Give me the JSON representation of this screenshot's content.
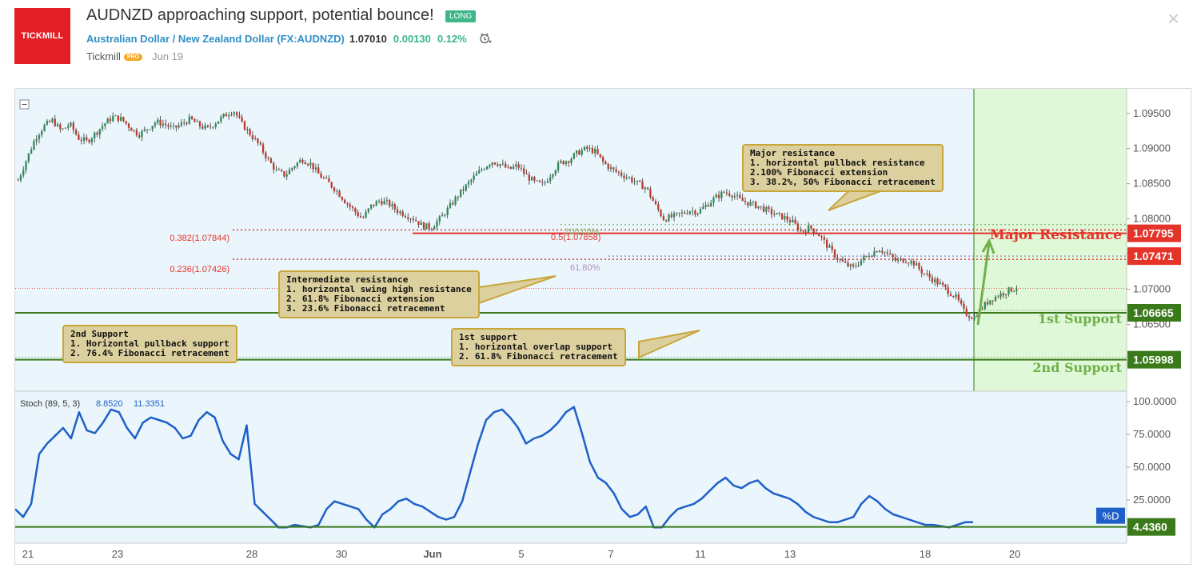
{
  "header": {
    "logo_text": "TICKMILL",
    "title": "AUDNZD approaching support, potential bounce!",
    "badge": "LONG",
    "symbol_line": "Australian Dollar / New Zealand Dollar (FX:AUDNZD)",
    "price": "1.07010",
    "change": "0.00130",
    "change_pct": "0.12%",
    "author": "Tickmill",
    "pro": "PRO",
    "date": "Jun 19",
    "close_glyph": "×"
  },
  "colors": {
    "red": "#e4342a",
    "green": "#3a7a1a",
    "green_zone": "#dff8d8",
    "stoch": "#1e5fc8",
    "note_bg": "#dcd09e",
    "note_border": "#c9a63b"
  },
  "annotations": {
    "major_resistance_label": "Major Resistance",
    "first_support_label": "1st Support",
    "second_support_label": "2nd Support",
    "fib_0382": "0.382(1.07844)",
    "fib_0236": "0.236(1.07426)",
    "fib_05": "0.5(1.07858)",
    "fib_100": "100.00%",
    "fib_618": "61.80%",
    "note_major": "Major resistance\n1. horizontal pullback resistance\n2.100% Fibonacci extension\n3. 38.2%, 50% Fibonacci retracement",
    "note_intermediate": "Intermediate resistance\n1. horizontal swing high resistance\n2. 61.8% Fibonacci extension\n3. 23.6% Fibonacci retracement",
    "note_second": "2nd Support\n1. Horizontal pullback support\n2. 76.4% Fibonacci retracement",
    "note_first": "1st support\n1. horizontal overlap support\n2. 61.8% Fibonacci retracement"
  },
  "chart_data": [
    {
      "type": "candlestick",
      "title": "AUDNZD",
      "ylim": [
        1.0555,
        1.0985
      ],
      "y_ticks": [
        "1.09500",
        "1.09000",
        "1.08500",
        "1.08000",
        "1.07500",
        "1.07000",
        "1.06500"
      ],
      "x_ticks": [
        "21",
        "23",
        "28",
        "30",
        "Jun",
        "5",
        "7",
        "11",
        "13",
        "18",
        "20"
      ],
      "price_tags": [
        {
          "label": "1.07795",
          "value": 1.07795,
          "color": "#e4342a"
        },
        {
          "label": "1.07471",
          "value": 1.07471,
          "color": "#e4342a"
        },
        {
          "label": "1.06665",
          "value": 1.06665,
          "color": "#3a7a1a"
        },
        {
          "label": "1.05998",
          "value": 1.05998,
          "color": "#3a7a1a"
        }
      ],
      "close_path": [
        1.0855,
        1.0885,
        1.0915,
        1.0932,
        1.094,
        1.0925,
        1.0935,
        1.0915,
        1.091,
        1.0922,
        1.0935,
        1.0945,
        1.0942,
        1.093,
        1.092,
        1.0928,
        1.0938,
        1.0935,
        1.0928,
        1.0935,
        1.0942,
        1.0933,
        1.0928,
        1.0938,
        1.0947,
        1.0955,
        1.0935,
        1.092,
        1.0905,
        1.0885,
        1.0868,
        1.0862,
        1.0875,
        1.0885,
        1.0878,
        1.0862,
        1.0852,
        1.084,
        1.0825,
        1.0812,
        1.08,
        1.0818,
        1.0826,
        1.0822,
        1.0812,
        1.0806,
        1.08,
        1.079,
        1.0788,
        1.08,
        1.0815,
        1.0832,
        1.0846,
        1.086,
        1.0872,
        1.0882,
        1.0878,
        1.087,
        1.0876,
        1.0862,
        1.0852,
        1.0848,
        1.0866,
        1.088,
        1.0884,
        1.0894,
        1.09,
        1.0896,
        1.088,
        1.087,
        1.0864,
        1.0858,
        1.085,
        1.0844,
        1.082,
        1.08,
        1.0803,
        1.0807,
        1.0812,
        1.081,
        1.082,
        1.083,
        1.0838,
        1.0835,
        1.0826,
        1.0822,
        1.0818,
        1.0812,
        1.0806,
        1.0802,
        1.0795,
        1.0782,
        1.0788,
        1.0778,
        1.0762,
        1.0746,
        1.0736,
        1.073,
        1.0742,
        1.075,
        1.0758,
        1.075,
        1.074,
        1.0742,
        1.0738,
        1.0725,
        1.0716,
        1.0708,
        1.0698,
        1.0688,
        1.0666,
        1.066,
        1.0674,
        1.0686,
        1.0692,
        1.0698,
        1.0702
      ],
      "fib_levels": [
        {
          "label": "0.382(1.07844)",
          "value": 1.07844
        },
        {
          "label": "0.236(1.07426)",
          "value": 1.07426
        },
        {
          "label": "0.5(1.07858)",
          "value": 1.07858
        },
        {
          "label": "100.00%",
          "value": 1.0792
        },
        {
          "label": "61.80%",
          "value": 1.0743
        }
      ]
    },
    {
      "type": "line",
      "title": "Stoch (89, 5, 3)",
      "series": [
        {
          "name": "Stoch (89, 5, 3)",
          "value_k": "8.8520",
          "value_d": "11.3351"
        }
      ],
      "ylim": [
        -8,
        108
      ],
      "y_ticks": [
        "100.0000",
        "75.0000",
        "50.0000",
        "25.0000"
      ],
      "d_tag": "%D",
      "last_value": "4.4360",
      "values": [
        18,
        12,
        22,
        60,
        68,
        74,
        80,
        72,
        92,
        78,
        76,
        84,
        94,
        92,
        80,
        72,
        84,
        88,
        86,
        84,
        80,
        72,
        74,
        86,
        92,
        88,
        70,
        60,
        56,
        82,
        22,
        16,
        10,
        4,
        4,
        6,
        5,
        4,
        6,
        18,
        24,
        22,
        20,
        18,
        10,
        4,
        14,
        18,
        24,
        26,
        22,
        20,
        16,
        12,
        10,
        12,
        24,
        46,
        68,
        86,
        92,
        94,
        88,
        80,
        68,
        72,
        74,
        78,
        84,
        92,
        96,
        76,
        54,
        42,
        38,
        30,
        18,
        12,
        14,
        20,
        4,
        4,
        12,
        18,
        20,
        22,
        26,
        32,
        38,
        42,
        36,
        34,
        38,
        40,
        34,
        30,
        28,
        26,
        22,
        16,
        12,
        10,
        8,
        8,
        10,
        12,
        22,
        28,
        24,
        18,
        14,
        12,
        10,
        8,
        6,
        6,
        5,
        4,
        6,
        8,
        8
      ]
    }
  ]
}
